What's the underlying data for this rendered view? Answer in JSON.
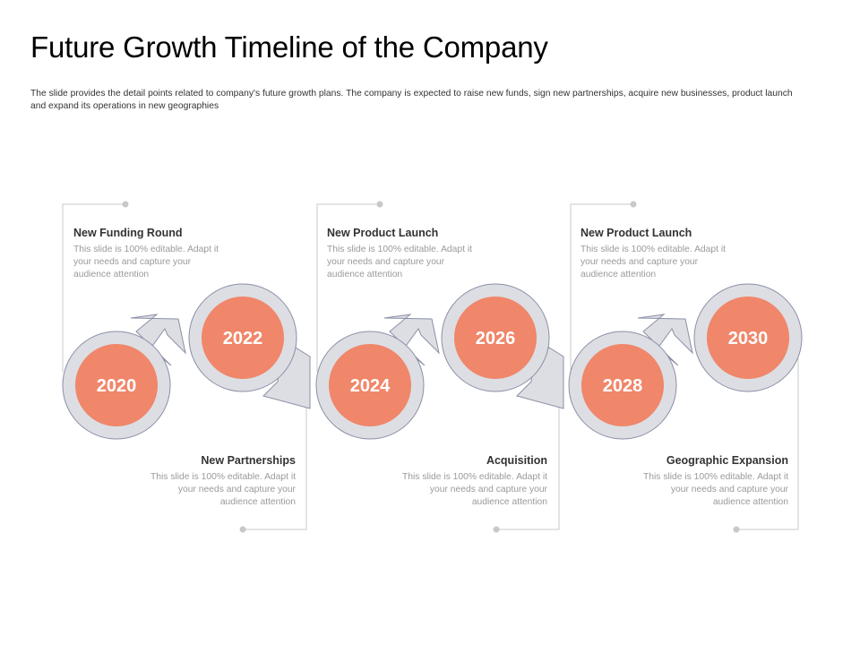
{
  "title": "Future Growth Timeline of the Company",
  "subtitle": "The slide provides the detail points related to company's future growth plans. The company is expected to raise new funds, sign new partnerships, acquire new businesses, product launch and expand its operations in new geographies",
  "colors": {
    "circle_fill": "#f0866a",
    "ring_fill": "#dcdee3",
    "ring_stroke": "#8b8fa6",
    "connector": "#c8c8c8",
    "text_dark": "#333333",
    "text_muted": "#9a9a9a"
  },
  "milestones": [
    {
      "year": "2020",
      "heading": "New Funding Round",
      "description": "This slide is 100% editable. Adapt it your needs and capture your audience attention"
    },
    {
      "year": "2022",
      "heading": "New Partnerships",
      "description": "This slide is 100% editable. Adapt it your needs and capture your audience attention"
    },
    {
      "year": "2024",
      "heading": "New Product Launch",
      "description": "This slide is 100% editable. Adapt it your needs and capture your audience attention"
    },
    {
      "year": "2026",
      "heading": "Acquisition",
      "description": "This slide is 100% editable. Adapt it your needs and capture your audience attention"
    },
    {
      "year": "2028",
      "heading": "New Product Launch",
      "description": "This slide is 100% editable. Adapt it your needs and capture your audience attention"
    },
    {
      "year": "2030",
      "heading": "Geographic Expansion",
      "description": "This slide is 100% editable. Adapt it your needs and capture your audience attention"
    }
  ]
}
